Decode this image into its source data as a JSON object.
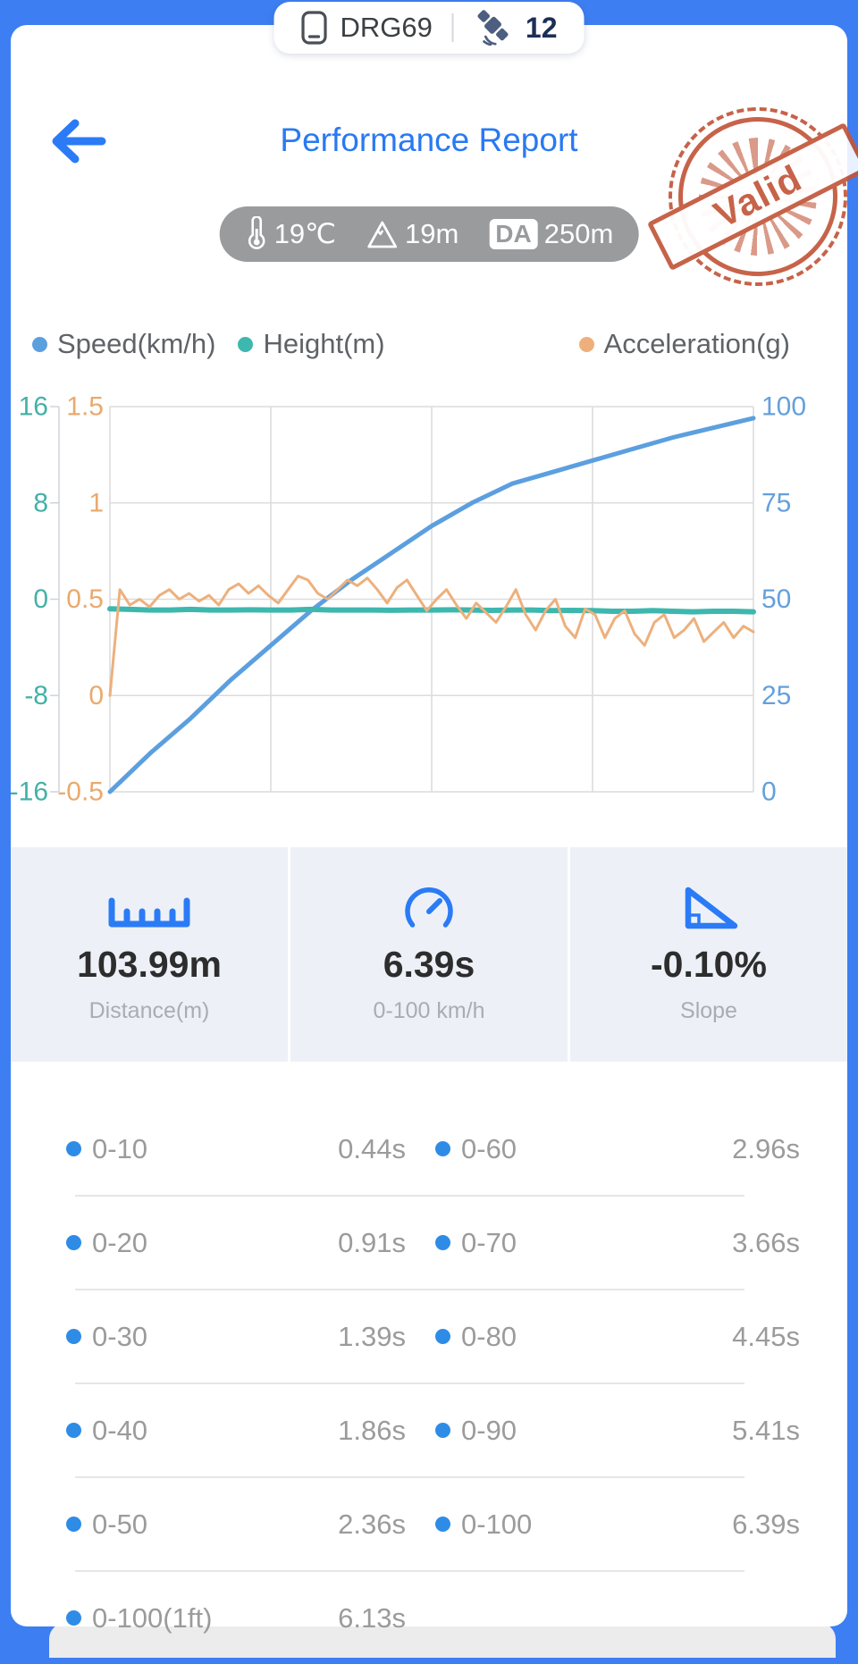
{
  "colors": {
    "frame_blue": "#3d7ef2",
    "title_blue": "#2979f2",
    "stamp_red": "#c2563a",
    "speed_blue": "#5c9fdf",
    "height_teal": "#3eb7ae",
    "accel_orange": "#edb07c",
    "bullet_blue": "#2f8ce6",
    "stats_bg": "#edf1f7"
  },
  "status_pill": {
    "device": "DRG69",
    "satellite_count": "12"
  },
  "header": {
    "title": "Performance Report",
    "env": {
      "temperature": "19℃",
      "altitude": "19m",
      "da_badge": "DA",
      "da_value": "250m"
    },
    "stamp_text": "Valid"
  },
  "legend": [
    {
      "label": "Speed(km/h)",
      "color": "#5c9fdf"
    },
    {
      "label": "Height(m)",
      "color": "#3eb7ae"
    },
    {
      "label": "Acceleration(g)",
      "color": "#edb07c"
    }
  ],
  "chart_data": {
    "type": "line",
    "grid": true,
    "x_tick_labels_visible": false,
    "axes": [
      {
        "id": "height",
        "side": "left",
        "order": 0,
        "color": "#44b1a8",
        "ticks": [
          "16",
          "8",
          "0",
          "-8",
          "-16"
        ],
        "min": -16,
        "max": 16
      },
      {
        "id": "acceleration",
        "side": "left",
        "order": 1,
        "color": "#eaa96e",
        "ticks": [
          "1.5",
          "1",
          "0.5",
          "0",
          "-0.5"
        ],
        "min": -0.5,
        "max": 1.5
      },
      {
        "id": "speed",
        "side": "right",
        "order": 0,
        "color": "#64a0dc",
        "ticks": [
          "100",
          "75",
          "50",
          "25",
          "0"
        ],
        "min": 0,
        "max": 100
      }
    ],
    "series": [
      {
        "name": "Speed(km/h)",
        "axis": "speed",
        "color": "#5c9fdf",
        "width": 5,
        "values": [
          0,
          10,
          19,
          29,
          38,
          47,
          55,
          62,
          69,
          75,
          80,
          83,
          86,
          89,
          92,
          94.5,
          97
        ]
      },
      {
        "name": "Height(m)",
        "axis": "height",
        "color": "#3eb7ae",
        "width": 6,
        "values": [
          -0.8,
          -0.85,
          -0.9,
          -0.9,
          -0.85,
          -0.9,
          -0.9,
          -0.88,
          -0.9,
          -0.9,
          -0.85,
          -0.9,
          -0.9,
          -0.9,
          -0.92,
          -0.9,
          -0.9,
          -0.88,
          -0.9,
          -0.93,
          -0.9,
          -0.9,
          -0.95,
          -0.93,
          -0.95,
          -1.0,
          -1.0,
          -0.95,
          -1.0,
          -1.05,
          -1.0,
          -1.0,
          -1.05
        ]
      },
      {
        "name": "Acceleration(g)",
        "axis": "acceleration",
        "color": "#edb07c",
        "width": 3,
        "values": [
          0,
          0.55,
          0.47,
          0.5,
          0.46,
          0.52,
          0.55,
          0.5,
          0.53,
          0.49,
          0.52,
          0.47,
          0.55,
          0.58,
          0.53,
          0.57,
          0.52,
          0.48,
          0.55,
          0.62,
          0.6,
          0.53,
          0.5,
          0.55,
          0.6,
          0.57,
          0.61,
          0.55,
          0.48,
          0.56,
          0.6,
          0.52,
          0.44,
          0.5,
          0.55,
          0.47,
          0.4,
          0.48,
          0.43,
          0.38,
          0.46,
          0.55,
          0.42,
          0.34,
          0.44,
          0.5,
          0.36,
          0.3,
          0.45,
          0.42,
          0.3,
          0.4,
          0.44,
          0.32,
          0.26,
          0.38,
          0.42,
          0.3,
          0.34,
          0.4,
          0.28,
          0.33,
          0.38,
          0.3,
          0.36,
          0.33
        ]
      }
    ]
  },
  "stats": [
    {
      "value": "103.99m",
      "label": "Distance(m)",
      "icon": "ruler-icon"
    },
    {
      "value": "6.39s",
      "label": "0-100 km/h",
      "icon": "speedometer-icon"
    },
    {
      "value": "-0.10%",
      "label": "Slope",
      "icon": "slope-icon"
    }
  ],
  "times": {
    "rows": [
      {
        "ll": "0-10",
        "lv": "0.44s",
        "rl": "0-60",
        "rv": "2.96s"
      },
      {
        "ll": "0-20",
        "lv": "0.91s",
        "rl": "0-70",
        "rv": "3.66s"
      },
      {
        "ll": "0-30",
        "lv": "1.39s",
        "rl": "0-80",
        "rv": "4.45s"
      },
      {
        "ll": "0-40",
        "lv": "1.86s",
        "rl": "0-90",
        "rv": "5.41s"
      },
      {
        "ll": "0-50",
        "lv": "2.36s",
        "rl": "0-100",
        "rv": "6.39s"
      }
    ],
    "footer": {
      "label": "0-100(1ft)",
      "value": "6.13s"
    }
  }
}
